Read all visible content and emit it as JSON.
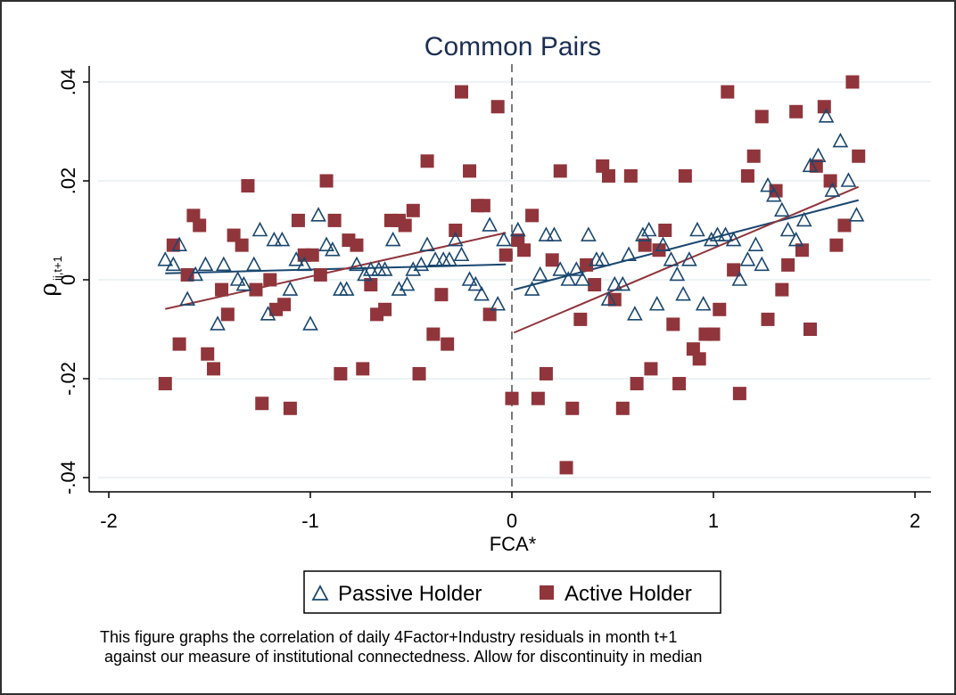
{
  "chart_data": {
    "type": "scatter",
    "title": "Common Pairs",
    "xlabel": "FCA*",
    "ylabel_main": "ρ",
    "ylabel_sub": "ij,t+1",
    "xlim": [
      -2,
      2
    ],
    "ylim": [
      -0.04,
      0.04
    ],
    "x_ticks": [
      -2,
      -1,
      0,
      1,
      2
    ],
    "x_tick_labels": [
      "-2",
      "-1",
      "0",
      "1",
      "2"
    ],
    "y_ticks": [
      -0.04,
      -0.02,
      0,
      0.02,
      0.04
    ],
    "y_tick_labels": [
      "-.04",
      "-.02",
      "0",
      ".02",
      ".04"
    ],
    "grid": true,
    "discontinuity_x": 0,
    "legend_position": "bottom",
    "colors": {
      "passive": "#1a476f",
      "active": "#90353b",
      "grid": "#e7eef1",
      "title": "#1b2f53"
    },
    "series": [
      {
        "name": "Passive Holder",
        "marker": "triangle",
        "points": [
          [
            -1.72,
            0.004
          ],
          [
            -1.68,
            0.003
          ],
          [
            -1.65,
            0.007
          ],
          [
            -1.61,
            -0.004
          ],
          [
            -1.57,
            0.001
          ],
          [
            -1.52,
            0.003
          ],
          [
            -1.46,
            -0.009
          ],
          [
            -1.43,
            0.003
          ],
          [
            -1.36,
            0.0
          ],
          [
            -1.33,
            -0.001
          ],
          [
            -1.28,
            0.003
          ],
          [
            -1.25,
            0.01
          ],
          [
            -1.21,
            -0.007
          ],
          [
            -1.18,
            0.008
          ],
          [
            -1.14,
            0.008
          ],
          [
            -1.1,
            -0.002
          ],
          [
            -1.07,
            0.004
          ],
          [
            -1.03,
            0.003
          ],
          [
            -1.0,
            -0.009
          ],
          [
            -0.96,
            0.013
          ],
          [
            -0.92,
            0.007
          ],
          [
            -0.89,
            0.006
          ],
          [
            -0.85,
            -0.002
          ],
          [
            -0.82,
            -0.002
          ],
          [
            -0.77,
            0.003
          ],
          [
            -0.73,
            0.001
          ],
          [
            -0.7,
            0.002
          ],
          [
            -0.66,
            0.002
          ],
          [
            -0.63,
            0.002
          ],
          [
            -0.59,
            0.008
          ],
          [
            -0.56,
            -0.002
          ],
          [
            -0.52,
            -0.001
          ],
          [
            -0.49,
            0.002
          ],
          [
            -0.45,
            0.003
          ],
          [
            -0.42,
            0.007
          ],
          [
            -0.38,
            0.004
          ],
          [
            -0.34,
            0.004
          ],
          [
            -0.31,
            0.004
          ],
          [
            -0.28,
            0.008
          ],
          [
            -0.25,
            0.005
          ],
          [
            -0.21,
            0.0
          ],
          [
            -0.18,
            -0.001
          ],
          [
            -0.15,
            -0.003
          ],
          [
            -0.11,
            0.011
          ],
          [
            -0.07,
            -0.005
          ],
          [
            -0.04,
            0.008
          ],
          [
            0.03,
            0.01
          ],
          [
            0.1,
            -0.002
          ],
          [
            0.14,
            0.001
          ],
          [
            0.17,
            0.009
          ],
          [
            0.21,
            0.009
          ],
          [
            0.24,
            0.002
          ],
          [
            0.28,
            0.0
          ],
          [
            0.32,
            0.002
          ],
          [
            0.35,
            0.0
          ],
          [
            0.38,
            0.009
          ],
          [
            0.42,
            0.004
          ],
          [
            0.45,
            0.004
          ],
          [
            0.48,
            -0.004
          ],
          [
            0.51,
            -0.001
          ],
          [
            0.55,
            -0.001
          ],
          [
            0.58,
            0.005
          ],
          [
            0.61,
            -0.007
          ],
          [
            0.65,
            0.009
          ],
          [
            0.68,
            0.01
          ],
          [
            0.72,
            -0.005
          ],
          [
            0.75,
            0.007
          ],
          [
            0.79,
            0.004
          ],
          [
            0.82,
            0.001
          ],
          [
            0.85,
            -0.003
          ],
          [
            0.88,
            0.004
          ],
          [
            0.92,
            0.01
          ],
          [
            0.95,
            -0.005
          ],
          [
            0.99,
            0.008
          ],
          [
            1.02,
            0.009
          ],
          [
            1.06,
            0.009
          ],
          [
            1.1,
            0.008
          ],
          [
            1.13,
            0.0
          ],
          [
            1.17,
            0.004
          ],
          [
            1.21,
            0.007
          ],
          [
            1.24,
            0.003
          ],
          [
            1.27,
            0.019
          ],
          [
            1.3,
            0.017
          ],
          [
            1.34,
            0.014
          ],
          [
            1.37,
            0.01
          ],
          [
            1.41,
            0.008
          ],
          [
            1.45,
            0.012
          ],
          [
            1.48,
            0.023
          ],
          [
            1.52,
            0.025
          ],
          [
            1.56,
            0.033
          ],
          [
            1.59,
            0.018
          ],
          [
            1.63,
            0.028
          ],
          [
            1.67,
            0.02
          ],
          [
            1.71,
            0.013
          ]
        ],
        "fit_segments": [
          {
            "x": [
              -1.72,
              -0.03
            ],
            "y": [
              0.0013,
              0.0031
            ]
          },
          {
            "x": [
              0.01,
              1.72
            ],
            "y": [
              -0.002,
              0.0161
            ]
          }
        ]
      },
      {
        "name": "Active Holder",
        "marker": "square",
        "points": [
          [
            -1.72,
            -0.021
          ],
          [
            -1.68,
            0.007
          ],
          [
            -1.65,
            -0.013
          ],
          [
            -1.61,
            0.001
          ],
          [
            -1.58,
            0.013
          ],
          [
            -1.55,
            0.011
          ],
          [
            -1.51,
            -0.015
          ],
          [
            -1.48,
            -0.018
          ],
          [
            -1.44,
            -0.002
          ],
          [
            -1.41,
            -0.007
          ],
          [
            -1.38,
            0.009
          ],
          [
            -1.34,
            0.007
          ],
          [
            -1.31,
            0.019
          ],
          [
            -1.27,
            -0.002
          ],
          [
            -1.24,
            -0.025
          ],
          [
            -1.2,
            0.0
          ],
          [
            -1.17,
            -0.006
          ],
          [
            -1.13,
            -0.005
          ],
          [
            -1.1,
            -0.026
          ],
          [
            -1.06,
            0.012
          ],
          [
            -1.03,
            0.005
          ],
          [
            -0.99,
            0.005
          ],
          [
            -0.95,
            0.001
          ],
          [
            -0.92,
            0.02
          ],
          [
            -0.88,
            0.012
          ],
          [
            -0.85,
            -0.019
          ],
          [
            -0.81,
            0.008
          ],
          [
            -0.77,
            0.007
          ],
          [
            -0.74,
            -0.018
          ],
          [
            -0.7,
            -0.001
          ],
          [
            -0.67,
            -0.007
          ],
          [
            -0.63,
            -0.006
          ],
          [
            -0.6,
            0.012
          ],
          [
            -0.56,
            0.012
          ],
          [
            -0.53,
            0.011
          ],
          [
            -0.49,
            0.014
          ],
          [
            -0.46,
            -0.019
          ],
          [
            -0.42,
            0.024
          ],
          [
            -0.39,
            -0.011
          ],
          [
            -0.35,
            -0.003
          ],
          [
            -0.32,
            -0.013
          ],
          [
            -0.28,
            0.01
          ],
          [
            -0.25,
            0.038
          ],
          [
            -0.21,
            0.022
          ],
          [
            -0.17,
            0.015
          ],
          [
            -0.14,
            0.015
          ],
          [
            -0.11,
            -0.007
          ],
          [
            -0.07,
            0.035
          ],
          [
            -0.03,
            0.005
          ],
          [
            0.0,
            -0.024
          ],
          [
            0.03,
            0.008
          ],
          [
            0.06,
            0.006
          ],
          [
            0.1,
            0.013
          ],
          [
            0.13,
            -0.024
          ],
          [
            0.17,
            -0.019
          ],
          [
            0.2,
            0.004
          ],
          [
            0.24,
            0.022
          ],
          [
            0.27,
            -0.038
          ],
          [
            0.3,
            -0.026
          ],
          [
            0.34,
            -0.008
          ],
          [
            0.37,
            0.003
          ],
          [
            0.41,
            -0.001
          ],
          [
            0.45,
            0.023
          ],
          [
            0.48,
            0.021
          ],
          [
            0.51,
            -0.004
          ],
          [
            0.55,
            -0.026
          ],
          [
            0.59,
            0.021
          ],
          [
            0.62,
            -0.021
          ],
          [
            0.66,
            0.007
          ],
          [
            0.69,
            -0.018
          ],
          [
            0.73,
            0.006
          ],
          [
            0.76,
            0.01
          ],
          [
            0.8,
            -0.009
          ],
          [
            0.83,
            -0.021
          ],
          [
            0.86,
            0.021
          ],
          [
            0.9,
            -0.014
          ],
          [
            0.93,
            -0.016
          ],
          [
            0.96,
            -0.011
          ],
          [
            1.0,
            -0.011
          ],
          [
            1.03,
            -0.006
          ],
          [
            1.07,
            0.038
          ],
          [
            1.1,
            0.002
          ],
          [
            1.13,
            -0.023
          ],
          [
            1.17,
            0.021
          ],
          [
            1.2,
            0.025
          ],
          [
            1.24,
            0.033
          ],
          [
            1.27,
            -0.008
          ],
          [
            1.31,
            0.018
          ],
          [
            1.34,
            -0.002
          ],
          [
            1.37,
            0.003
          ],
          [
            1.41,
            0.034
          ],
          [
            1.44,
            0.006
          ],
          [
            1.48,
            -0.01
          ],
          [
            1.51,
            0.023
          ],
          [
            1.55,
            0.035
          ],
          [
            1.58,
            0.02
          ],
          [
            1.61,
            0.007
          ],
          [
            1.65,
            0.011
          ],
          [
            1.69,
            0.04
          ],
          [
            1.72,
            0.025
          ]
        ],
        "fit_segments": [
          {
            "x": [
              -1.72,
              -0.03
            ],
            "y": [
              -0.0059,
              0.0095
            ]
          },
          {
            "x": [
              0.01,
              1.72
            ],
            "y": [
              -0.0107,
              0.0188
            ]
          }
        ]
      }
    ]
  },
  "legend": {
    "passive_label": "Passive Holder",
    "active_label": "Active Holder"
  },
  "caption": {
    "line1": "This figure graphs the correlation of daily 4Factor+Industry residuals in month t+1",
    "line2": " against our measure of institutional connectedness. Allow for discontinuity in median"
  }
}
